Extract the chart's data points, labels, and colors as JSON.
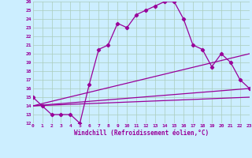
{
  "xlabel": "Windchill (Refroidissement éolien,°C)",
  "background_color": "#cceeff",
  "grid_color": "#aaccbb",
  "line_color": "#990099",
  "xlim": [
    0,
    23
  ],
  "ylim": [
    12,
    26
  ],
  "xticks": [
    0,
    1,
    2,
    3,
    4,
    5,
    6,
    7,
    8,
    9,
    10,
    11,
    12,
    13,
    14,
    15,
    16,
    17,
    18,
    19,
    20,
    21,
    22,
    23
  ],
  "yticks": [
    12,
    13,
    14,
    15,
    16,
    17,
    18,
    19,
    20,
    21,
    22,
    23,
    24,
    25,
    26
  ],
  "line1_x": [
    0,
    1,
    2,
    3,
    4,
    5,
    6,
    7,
    8,
    9,
    10,
    11,
    12,
    13,
    14,
    15,
    16,
    17,
    18,
    19,
    20,
    21,
    22,
    23
  ],
  "line1_y": [
    15,
    14,
    13,
    13,
    13,
    12,
    16.5,
    20.5,
    21,
    23.5,
    23,
    24.5,
    25,
    25.5,
    26,
    26,
    24,
    21,
    20.5,
    18.5,
    20,
    19,
    17,
    16
  ],
  "line2_x": [
    0,
    23
  ],
  "line2_y": [
    14,
    16
  ],
  "line3_x": [
    0,
    23
  ],
  "line3_y": [
    14,
    20
  ],
  "line4_x": [
    0,
    23
  ],
  "line4_y": [
    14,
    15
  ]
}
